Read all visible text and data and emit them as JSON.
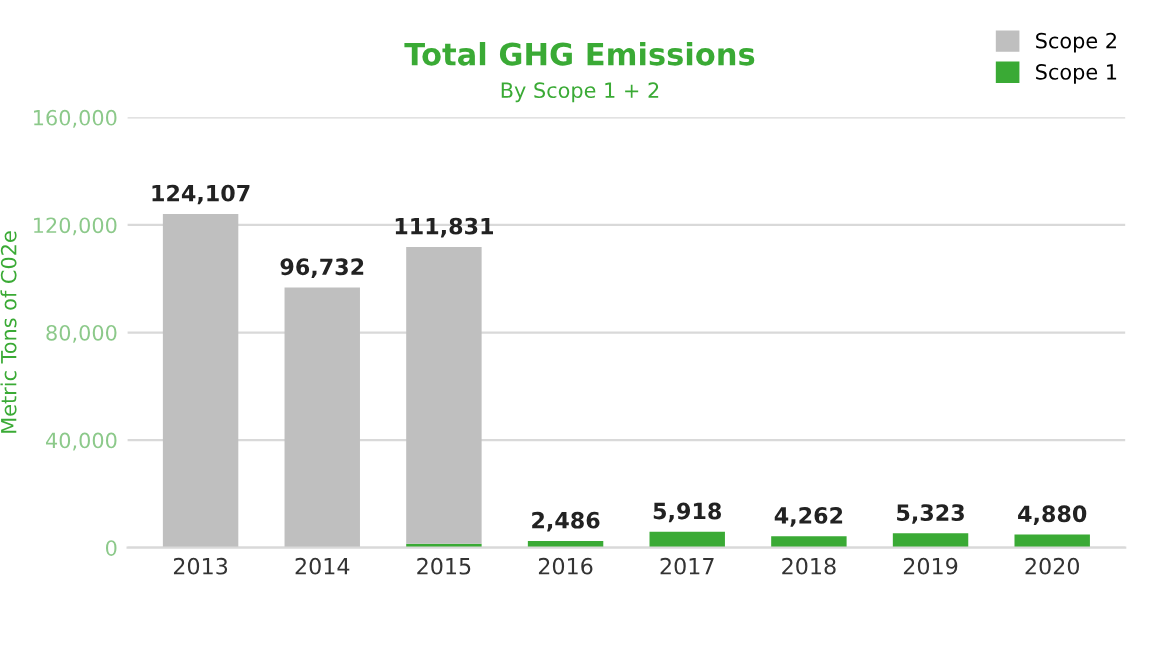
{
  "chart_data": {
    "type": "bar",
    "title": "Total GHG Emissions",
    "subtitle": "By Scope 1 + 2",
    "ylabel": "Metric Tons of C02e",
    "categories": [
      "2013",
      "2014",
      "2015",
      "2016",
      "2017",
      "2018",
      "2019",
      "2020"
    ],
    "series": [
      {
        "name": "Scope 1",
        "color": "#3aaa35",
        "values": [
          0,
          0,
          1500,
          2486,
          5918,
          4262,
          5323,
          4880
        ]
      },
      {
        "name": "Scope 2",
        "color": "#bfbfbf",
        "values": [
          124107,
          96732,
          110331,
          0,
          0,
          0,
          0,
          0
        ]
      }
    ],
    "stacked": true,
    "totals": [
      "124,107",
      "96,732",
      "111,831",
      "2,486",
      "5,918",
      "4,262",
      "5,323",
      "4,880"
    ],
    "ylim": [
      0,
      160000
    ],
    "yticks": [
      0,
      {
        "value": 40000,
        "label": "40,000"
      },
      {
        "value": 80000,
        "label": "80,000"
      },
      {
        "value": 120000,
        "label": "120,000"
      },
      {
        "value": 160000,
        "label": "160,000"
      }
    ],
    "grid": "y",
    "legend": "top right"
  }
}
